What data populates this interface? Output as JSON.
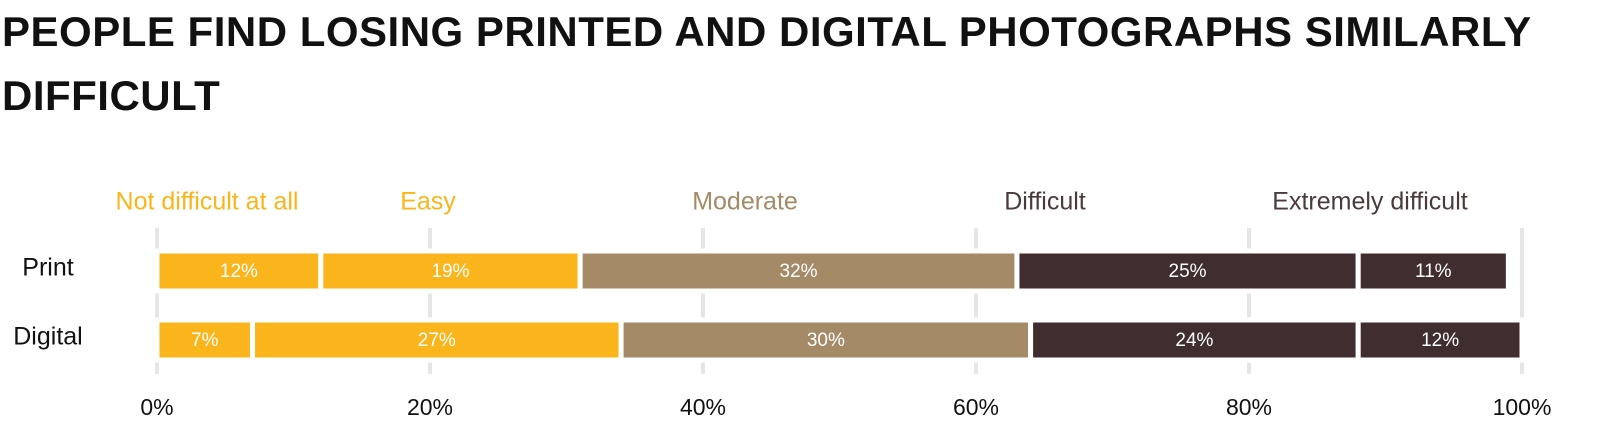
{
  "chart_data": {
    "type": "stacked-bar-horizontal",
    "title": "PEOPLE FIND LOSING PRINTED AND DIGITAL PHOTOGRAPHS SIMILARLY DIFFICULT",
    "categories": [
      "Print",
      "Digital"
    ],
    "series": [
      {
        "name": "Not difficult at all",
        "color": "#f9b51b",
        "label_color": "#f9b51b",
        "values": [
          12,
          7
        ],
        "value_labels": [
          "12%",
          "7%"
        ]
      },
      {
        "name": "Easy",
        "color": "#f9b51b",
        "label_color": "#f9b51b",
        "values": [
          19,
          27
        ],
        "value_labels": [
          "19%",
          "27%"
        ]
      },
      {
        "name": "Moderate",
        "color": "#a48a66",
        "label_color": "#a48a66",
        "values": [
          32,
          30
        ],
        "value_labels": [
          "32%",
          "30%"
        ]
      },
      {
        "name": "Difficult",
        "color": "#402d30",
        "label_color": "#4a3a3c",
        "values": [
          25,
          24
        ],
        "value_labels": [
          "25%",
          "24%"
        ]
      },
      {
        "name": "Extremely difficult",
        "color": "#402d30",
        "label_color": "#4a3a3c",
        "values": [
          11,
          12
        ],
        "value_labels": [
          "11%",
          "12%"
        ]
      }
    ],
    "xlim": [
      0,
      100
    ],
    "xticks": [
      {
        "value": 0,
        "label": "0%"
      },
      {
        "value": 20,
        "label": "20%"
      },
      {
        "value": 40,
        "label": "40%"
      },
      {
        "value": 60,
        "label": "60%"
      },
      {
        "value": 80,
        "label": "80%"
      },
      {
        "value": 100,
        "label": "100%"
      }
    ],
    "grid": true
  }
}
